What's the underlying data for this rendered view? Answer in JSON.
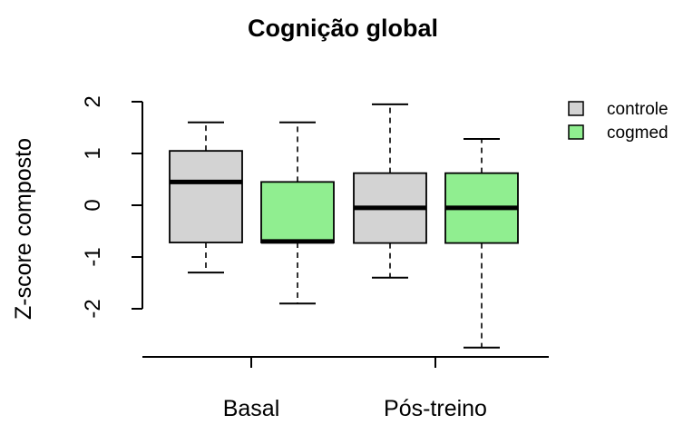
{
  "chart_data": {
    "type": "boxplot",
    "title": "Cognição global",
    "xlabel": "",
    "ylabel": "Z-score composto",
    "categories": [
      "Basal",
      "Pós-treino"
    ],
    "yticks": [
      -2,
      -1,
      0,
      1,
      2
    ],
    "ylim": [
      -2.9,
      2.2
    ],
    "grid": false,
    "legend": {
      "position": "top-right"
    },
    "series": [
      {
        "name": "controle",
        "color": "#d3d3d3",
        "boxes": [
          {
            "whisker_low": -1.3,
            "q1": -0.72,
            "median": 0.45,
            "q3": 1.05,
            "whisker_high": 1.6
          },
          {
            "whisker_low": -1.4,
            "q1": -0.73,
            "median": -0.05,
            "q3": 0.62,
            "whisker_high": 1.95
          }
        ]
      },
      {
        "name": "cogmed",
        "color": "#90ee90",
        "boxes": [
          {
            "whisker_low": -1.9,
            "q1": -0.72,
            "median": -0.7,
            "q3": 0.45,
            "whisker_high": 1.6
          },
          {
            "whisker_low": -2.75,
            "q1": -0.73,
            "median": -0.05,
            "q3": 0.62,
            "whisker_high": 1.28
          }
        ]
      }
    ]
  }
}
